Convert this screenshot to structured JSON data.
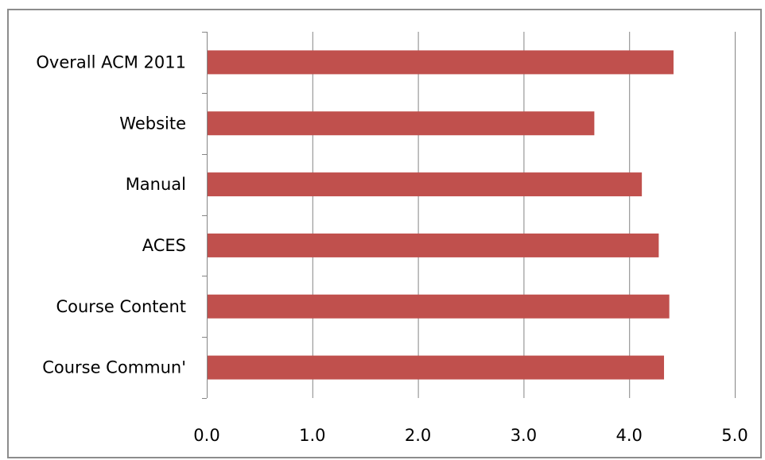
{
  "chart_data": {
    "type": "bar",
    "orientation": "horizontal",
    "categories": [
      "Overall ACM 2011",
      "Website",
      "Manual",
      "ACES",
      "Course Content",
      "Course Commun'"
    ],
    "values": [
      4.42,
      3.67,
      4.12,
      4.28,
      4.38,
      4.33
    ],
    "xlim": [
      0,
      5
    ],
    "xticks": [
      "0.0",
      "1.0",
      "2.0",
      "3.0",
      "4.0",
      "5.0"
    ],
    "title": "",
    "xlabel": "",
    "ylabel": "",
    "grid": "vertical",
    "legend": "none",
    "bar_color": "#c0504d",
    "grid_color": "#868686"
  }
}
